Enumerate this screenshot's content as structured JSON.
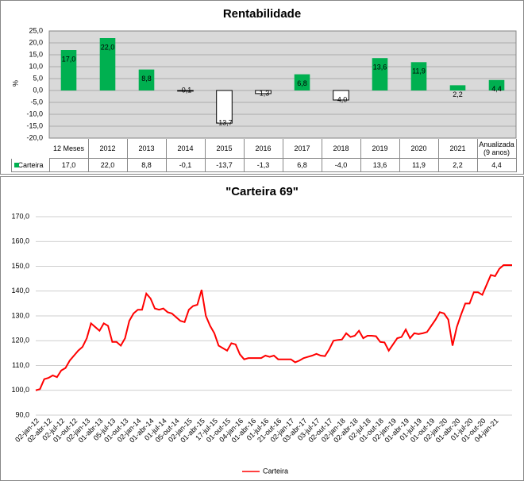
{
  "chart_data": [
    {
      "type": "bar",
      "title": "Rentabilidade",
      "y_label": "%",
      "categories": [
        "12 Meses",
        "2012",
        "2013",
        "2014",
        "2015",
        "2016",
        "2017",
        "2018",
        "2019",
        "2020",
        "2021",
        "Anualizada (9 anos)"
      ],
      "series": [
        {
          "name": "Carteira",
          "color": "#00b050",
          "negative_color": "#ffffff",
          "values": [
            17.0,
            22.0,
            8.8,
            -0.1,
            -13.7,
            -1.3,
            6.8,
            -4.0,
            13.6,
            11.9,
            2.2,
            4.4
          ],
          "value_labels": [
            "17,0",
            "22,0",
            "8,8",
            "-0,1",
            "-13,7",
            "-1,3",
            "6,8",
            "-4,0",
            "13,6",
            "11,9",
            "2,2",
            "4,4"
          ]
        }
      ],
      "ylim": [
        -20,
        25
      ],
      "yticks": [
        {
          "value": 25,
          "label": "25,0"
        },
        {
          "value": 20,
          "label": "20,0"
        },
        {
          "value": 15,
          "label": "15,0"
        },
        {
          "value": 10,
          "label": "10,0"
        },
        {
          "value": 5,
          "label": "5,0"
        },
        {
          "value": 0,
          "label": "0,0"
        },
        {
          "value": -5,
          "label": "-5,0"
        },
        {
          "value": -10,
          "label": "-10,0"
        },
        {
          "value": -15,
          "label": "-15,0"
        },
        {
          "value": -20,
          "label": "-20,0"
        }
      ],
      "grid": true
    },
    {
      "type": "line",
      "title": "\"Carteira 69\"",
      "categories": [
        "02-jan-12",
        null,
        null,
        "02-abr-12",
        null,
        null,
        "02-jul-12",
        null,
        null,
        "01-out-12",
        null,
        null,
        "02-jan-13",
        null,
        null,
        "01-abr-13",
        null,
        null,
        "05-jul-13",
        null,
        null,
        "01-out-13",
        null,
        null,
        "02-jan-14",
        null,
        null,
        "01-abr-14",
        null,
        null,
        "01-jul-14",
        null,
        null,
        "05-out-14",
        null,
        null,
        "02-jan-15",
        null,
        null,
        "01-abr-15",
        null,
        null,
        "17-jul-15",
        null,
        null,
        "01-out-15",
        null,
        null,
        "04-jan-16",
        null,
        null,
        "01-abr-16",
        null,
        null,
        "01-jul-16",
        null,
        null,
        "21-out-16",
        null,
        null,
        "02-jan-17",
        null,
        null,
        "03-abr-17",
        null,
        null,
        "03-jul-17",
        null,
        null,
        "02-out-17",
        null,
        null,
        "02-jan-18",
        null,
        null,
        "02-abr-18",
        null,
        null,
        "02-jul-18",
        null,
        null,
        "01-out-18",
        null,
        null,
        "02-jan-19",
        null,
        null,
        "01-abr-19",
        null,
        null,
        "01-jul-19",
        null,
        null,
        "01-out-19",
        null,
        null,
        "02-jan-20",
        null,
        null,
        "01-abr-20",
        null,
        null,
        "01-jul-20",
        null,
        null,
        "01-out-20",
        null,
        null,
        "04-jan-21",
        null,
        null,
        null,
        null
      ],
      "series": [
        {
          "name": "Carteira",
          "color": "#ff0000",
          "values": [
            100,
            100.5,
            104.5,
            105,
            106,
            105.3,
            108,
            109,
            112,
            114,
            116,
            117.5,
            121,
            127,
            125.5,
            124,
            127,
            126,
            119.5,
            119.5,
            118,
            121,
            128,
            131,
            132.5,
            132.5,
            139,
            137,
            133,
            132.5,
            133,
            131.5,
            131,
            129.5,
            128,
            127.5,
            132.5,
            134,
            134.5,
            140.5,
            130,
            126,
            123,
            118,
            117,
            116,
            119,
            118.5,
            114.5,
            112.5,
            113,
            113,
            113,
            113,
            114,
            113.5,
            114,
            112.5,
            112.5,
            112.5,
            112.5,
            111.3,
            112,
            113,
            113.5,
            114,
            114.7,
            114,
            113.8,
            116.5,
            120,
            120.3,
            120.5,
            123,
            121.5,
            122,
            124,
            121,
            122,
            122,
            121.8,
            119.5,
            119.3,
            116,
            118.5,
            121,
            121.5,
            124.5,
            121,
            123,
            122.7,
            123,
            123.5,
            126,
            128.5,
            131.5,
            131,
            128.5,
            118,
            125.5,
            130.5,
            135,
            135,
            139.5,
            139.5,
            138.5,
            142.5,
            146.5,
            146,
            149,
            150.5,
            150.5,
            150.5
          ]
        }
      ],
      "ylim": [
        90,
        170
      ],
      "yticks": [
        {
          "value": 170,
          "label": "170,0"
        },
        {
          "value": 160,
          "label": "160,0"
        },
        {
          "value": 150,
          "label": "150,0"
        },
        {
          "value": 140,
          "label": "140,0"
        },
        {
          "value": 130,
          "label": "130,0"
        },
        {
          "value": 120,
          "label": "120,0"
        },
        {
          "value": 110,
          "label": "110,0"
        },
        {
          "value": 100,
          "label": "100,0"
        },
        {
          "value": 90,
          "label": "90,0"
        }
      ],
      "grid": true,
      "legend": "bottom"
    }
  ]
}
